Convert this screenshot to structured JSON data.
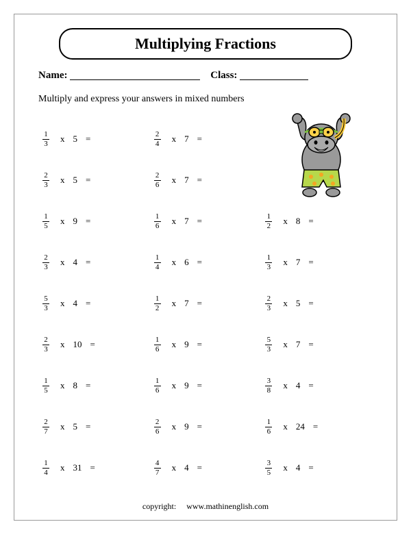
{
  "title": "Multiplying Fractions",
  "name_label": "Name:",
  "class_label": "Class:",
  "instructions": "Multiply and express your answers in mixed numbers",
  "copyright_label": "copyright:",
  "copyright_site": "www.mathinenglish.com",
  "layout": {
    "blank_name_width": 190,
    "blank_class_width": 100
  },
  "hippo": {
    "body_color": "#9a9a9a",
    "body_shadow": "#777777",
    "outline": "#000000",
    "shorts_color": "#b7d84b",
    "shorts_dots": "#f5a623",
    "goggle_strap": "#7bbf3f",
    "goggle_lens": "#ffd24a",
    "snorkel": "#ffcc33",
    "mouth": "#ffffff"
  },
  "grid": [
    [
      {
        "num": "1",
        "den": "3",
        "whole": "5"
      },
      {
        "num": "2",
        "den": "4",
        "whole": "7"
      },
      null
    ],
    [
      {
        "num": "2",
        "den": "3",
        "whole": "5"
      },
      {
        "num": "2",
        "den": "6",
        "whole": "7"
      },
      null
    ],
    [
      {
        "num": "1",
        "den": "5",
        "whole": "9"
      },
      {
        "num": "1",
        "den": "6",
        "whole": "7"
      },
      {
        "num": "1",
        "den": "2",
        "whole": "8"
      }
    ],
    [
      {
        "num": "2",
        "den": "3",
        "whole": "4"
      },
      {
        "num": "1",
        "den": "4",
        "whole": "6"
      },
      {
        "num": "1",
        "den": "3",
        "whole": "7"
      }
    ],
    [
      {
        "num": "5",
        "den": "3",
        "whole": "4"
      },
      {
        "num": "1",
        "den": "2",
        "whole": "7"
      },
      {
        "num": "2",
        "den": "3",
        "whole": "5"
      }
    ],
    [
      {
        "num": "2",
        "den": "3",
        "whole": "10"
      },
      {
        "num": "1",
        "den": "6",
        "whole": "9"
      },
      {
        "num": "5",
        "den": "3",
        "whole": "7"
      }
    ],
    [
      {
        "num": "1",
        "den": "5",
        "whole": "8"
      },
      {
        "num": "1",
        "den": "6",
        "whole": "9"
      },
      {
        "num": "3",
        "den": "8",
        "whole": "4"
      }
    ],
    [
      {
        "num": "2",
        "den": "7",
        "whole": "5"
      },
      {
        "num": "2",
        "den": "6",
        "whole": "9"
      },
      {
        "num": "1",
        "den": "6",
        "whole": "24"
      }
    ],
    [
      {
        "num": "1",
        "den": "4",
        "whole": "31"
      },
      {
        "num": "4",
        "den": "7",
        "whole": "4"
      },
      {
        "num": "3",
        "den": "5",
        "whole": "4"
      }
    ]
  ]
}
